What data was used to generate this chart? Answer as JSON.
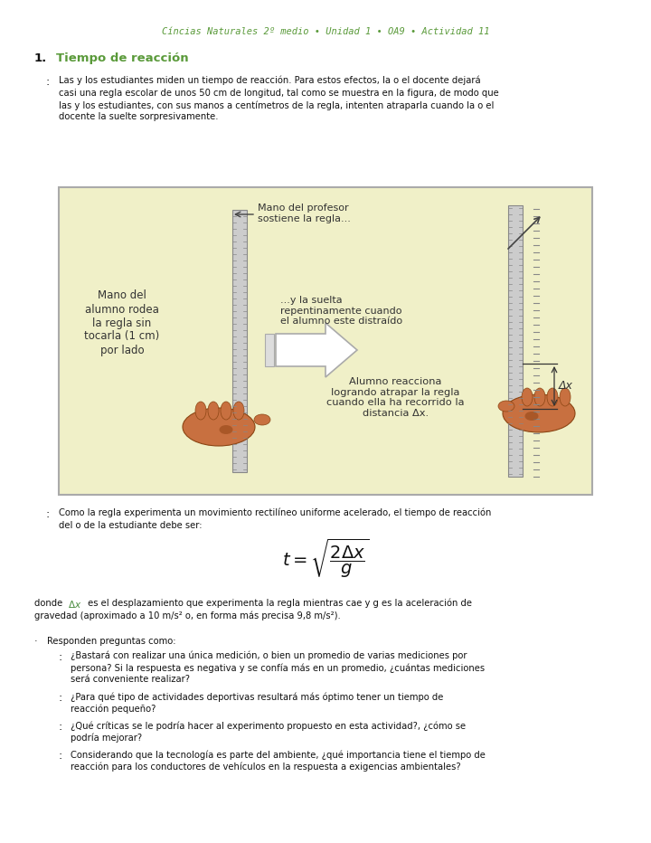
{
  "title": "Cíncias Naturales 2º medio • Unidad 1 • OA9 • Actividad 11",
  "title_color": "#5a9a3a",
  "background_color": "#ffffff",
  "section_number": "1.",
  "section_title": "Tiempo de reacción",
  "section_title_color": "#5a9a3a",
  "intro_bullet": ":",
  "intro_text_lines": [
    "Las y los estudiantes miden un tiempo de reacción. Para estos efectos, la o el docente dejará",
    "casi una regla escolar de unos 50 cm de longitud, tal como se muestra en la figura, de modo que",
    "las y los estudiantes, con sus manos a centímetros de la regla, intenten atraparla cuando la o el",
    "docente la suelte sorpresivamente."
  ],
  "figure_bg": "#f0f0c8",
  "figure_border": "#aaaaaa",
  "left_label": "Mano del\nalumno rodea\nla regla sin\ntocarla (1 cm)\npor lado",
  "top_label": "Mano del profesor\nsostiene la regla...",
  "mid_label": "...y la suelta\nrepentinamente cuando\nel alumno este distraído",
  "bottom_label": "Alumno reacciona\nlogrando atrapar la regla\ncuando ella ha recorrido la\ndistancia Δx.",
  "delta_x_label": "Δx",
  "como_bullet": ":",
  "como_text_lines": [
    "Como la regla experimenta un movimiento rectilíneo uniforme acelerado, el tiempo de reacción",
    "del o de la estudiante debe ser:"
  ],
  "where_line1": "donde Δx  es el desplazamiento que experimenta la regla mientras cae y g es la aceleración de",
  "where_line2": "gravedad (aproximado a 10 m/s² o, en forma más precisa 9,8 m/s²).",
  "respond_bullet": "·",
  "respond_label": "Responden preguntas como:",
  "questions": [
    [
      "¿Bastará con realizar una única medición, o bien un promedio de varias mediciones por",
      "persona? Si la respuesta es negativa y se confía más en un promedio, ¿cuántas mediciones",
      "será conveniente realizar?"
    ],
    [
      "¿Para qué tipo de actividades deportivas resultará más óptimo tener un tiempo de",
      "reacción pequeño?"
    ],
    [
      "¿Qué críticas se le podría hacer al experimento propuesto en esta actividad?, ¿cómo se",
      "podría mejorar?"
    ],
    [
      "Considerando que la tecnología es parte del ambiente, ¿qué importancia tiene el tiempo de",
      "reacción para los conductores de vehículos en la respuesta a exigencias ambientales?"
    ]
  ],
  "text_color": "#111111",
  "ruler_color": "#cccccc",
  "ruler_border": "#888888",
  "hand_color": "#c87040",
  "hand_border": "#8b4513",
  "arrow_fill": "#ffffff",
  "arrow_border": "#aaaaaa"
}
